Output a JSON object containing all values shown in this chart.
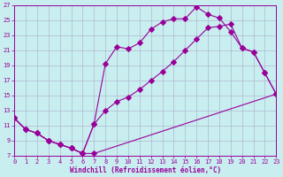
{
  "xlabel": "Windchill (Refroidissement éolien,°C)",
  "bg_color": "#c8eef0",
  "line_color": "#990099",
  "grid_color": "#b0b8d0",
  "xmin": 0,
  "xmax": 23,
  "ymin": 7,
  "ymax": 27,
  "yticks": [
    7,
    9,
    11,
    13,
    15,
    17,
    19,
    21,
    23,
    25,
    27
  ],
  "xticks": [
    0,
    1,
    2,
    3,
    4,
    5,
    6,
    7,
    8,
    9,
    10,
    11,
    12,
    13,
    14,
    15,
    16,
    17,
    18,
    19,
    20,
    21,
    22,
    23
  ],
  "line1_x": [
    0,
    1,
    2,
    3,
    4,
    5,
    6,
    7,
    23
  ],
  "line1_y": [
    12,
    10.5,
    10.0,
    9.0,
    8.5,
    8.0,
    7.3,
    7.3,
    15.2
  ],
  "line2_x": [
    0,
    1,
    2,
    3,
    4,
    5,
    6,
    7,
    8,
    9,
    10,
    11,
    12,
    13,
    14,
    15,
    16,
    17,
    18,
    19,
    20,
    21,
    22,
    23
  ],
  "line2_y": [
    12,
    10.5,
    10.0,
    9.0,
    8.5,
    8.0,
    7.3,
    11.2,
    19.2,
    21.5,
    21.2,
    22.0,
    23.8,
    24.8,
    25.2,
    25.2,
    26.8,
    25.8,
    25.3,
    23.5,
    21.3,
    20.8,
    18.0,
    15.2
  ],
  "line3_x": [
    0,
    1,
    2,
    3,
    4,
    5,
    6,
    7,
    8,
    9,
    10,
    11,
    12,
    13,
    14,
    15,
    16,
    17,
    18,
    19,
    20,
    21,
    22,
    23
  ],
  "line3_y": [
    12,
    10.5,
    10.0,
    9.0,
    8.5,
    8.0,
    7.3,
    11.2,
    13.0,
    14.2,
    14.8,
    15.8,
    17.0,
    18.2,
    19.5,
    21.0,
    22.5,
    24.0,
    24.2,
    24.5,
    21.3,
    20.8,
    18.0,
    15.2
  ]
}
